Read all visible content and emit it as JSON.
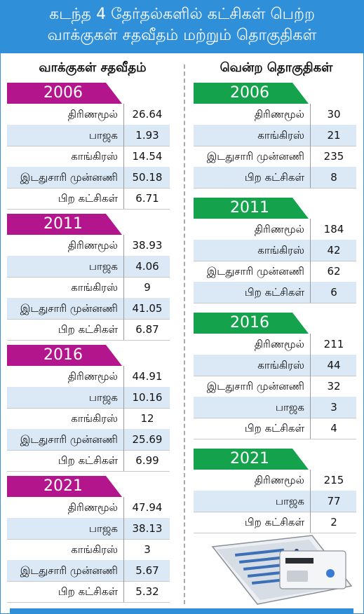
{
  "title": {
    "line1": "கடந்த 4 தேர்தல்களில் கட்சிகள் பெற்ற",
    "line2": "வாக்குகள் சதவீதம் மற்றும் தொகுதிகள்"
  },
  "left_heading": "வாக்குகள் சதவீதம்",
  "right_heading": "வென்ற தொகுதிகள்",
  "chart_data": [
    {
      "type": "table",
      "title": "வாக்குகள் சதவீதம்",
      "groups": [
        {
          "year": "2006",
          "rows": [
            {
              "party": "திரிணமூல்",
              "value": "26.64"
            },
            {
              "party": "பாஜக",
              "value": "1.93"
            },
            {
              "party": "காங்கிரஸ்",
              "value": "14.54"
            },
            {
              "party": "இடதுசாரி முன்னணி",
              "value": "50.18"
            },
            {
              "party": "பிற கட்சிகள்",
              "value": "6.71"
            }
          ]
        },
        {
          "year": "2011",
          "rows": [
            {
              "party": "திரிணமூல்",
              "value": "38.93"
            },
            {
              "party": "பாஜக",
              "value": "4.06"
            },
            {
              "party": "காங்கிரஸ்",
              "value": "9"
            },
            {
              "party": "இடதுசாரி முன்னணி",
              "value": "41.05"
            },
            {
              "party": "பிற கட்சிகள்",
              "value": "6.87"
            }
          ]
        },
        {
          "year": "2016",
          "rows": [
            {
              "party": "திரிணமூல்",
              "value": "44.91"
            },
            {
              "party": "பாஜக",
              "value": "10.16"
            },
            {
              "party": "காங்கிரஸ்",
              "value": "12"
            },
            {
              "party": "இடதுசாரி முன்னணி",
              "value": "25.69"
            },
            {
              "party": "பிற கட்சிகள்",
              "value": "6.99"
            }
          ]
        },
        {
          "year": "2021",
          "rows": [
            {
              "party": "திரிணமூல்",
              "value": "47.94"
            },
            {
              "party": "பாஜக",
              "value": "38.13"
            },
            {
              "party": "காங்கிரஸ்",
              "value": "3"
            },
            {
              "party": "இடதுசாரி முன்னணி",
              "value": "5.67"
            },
            {
              "party": "பிற கட்சிகள்",
              "value": "5.32"
            }
          ]
        }
      ]
    },
    {
      "type": "table",
      "title": "வென்ற தொகுதிகள்",
      "groups": [
        {
          "year": "2006",
          "rows": [
            {
              "party": "திரிணமூல்",
              "value": "30"
            },
            {
              "party": "காங்கிரஸ்",
              "value": "21"
            },
            {
              "party": "இடதுசாரி முன்னணி",
              "value": "235"
            },
            {
              "party": "பிற கட்சிகள்",
              "value": "8"
            }
          ]
        },
        {
          "year": "2011",
          "rows": [
            {
              "party": "திரிணமூல்",
              "value": "184"
            },
            {
              "party": "காங்கிரஸ்",
              "value": "42"
            },
            {
              "party": "இடதுசாரி முன்னணி",
              "value": "62"
            },
            {
              "party": "பிற கட்சிகள்",
              "value": "6"
            }
          ]
        },
        {
          "year": "2016",
          "rows": [
            {
              "party": "திரிணமூல்",
              "value": "211"
            },
            {
              "party": "காங்கிரஸ்",
              "value": "44"
            },
            {
              "party": "இடதுசாரி முன்னணி",
              "value": "32"
            },
            {
              "party": "பாஜக",
              "value": "3"
            },
            {
              "party": "பிற கட்சிகள்",
              "value": "4"
            }
          ]
        },
        {
          "year": "2021",
          "rows": [
            {
              "party": "திரிணமூல்",
              "value": "215"
            },
            {
              "party": "பாஜக",
              "value": "77"
            },
            {
              "party": "பிற கட்சிகள்",
              "value": "2"
            }
          ]
        }
      ]
    }
  ],
  "colors": {
    "title_bg": "#2f8fd8",
    "left_year_bg": "#b3158c",
    "right_year_bg": "#14a24c",
    "alt_row_bg": "#dbe9f7"
  },
  "illustration": "evm-machine"
}
